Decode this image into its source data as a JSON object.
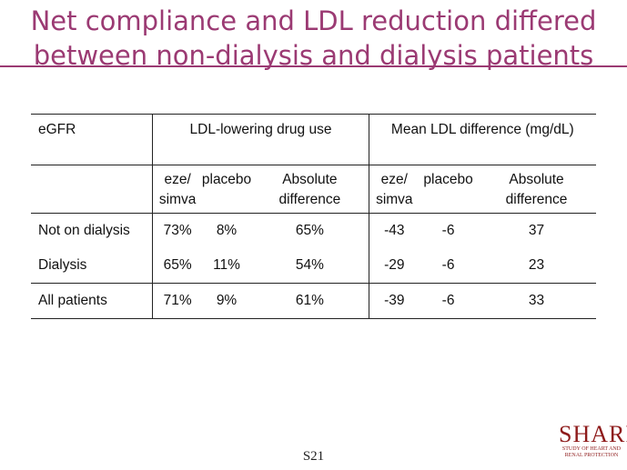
{
  "title": {
    "line1": "Net compliance and LDL reduction differed",
    "line2": "between non-dialysis and dialysis patients"
  },
  "table": {
    "header": {
      "egfr": "eGFR",
      "group1": "LDL-lowering drug use",
      "group2": "Mean LDL difference (mg/dL)"
    },
    "subheaders": [
      {
        "l1": "eze/",
        "l2": "simva"
      },
      {
        "l1": "placebo",
        "l2": ""
      },
      {
        "l1": "Absolute",
        "l2": "difference"
      },
      {
        "l1": "eze/",
        "l2": "simva"
      },
      {
        "l1": "placebo",
        "l2": ""
      },
      {
        "l1": "Absolute",
        "l2": "difference"
      }
    ],
    "rows": [
      {
        "label": "Not on dialysis",
        "values": [
          "73%",
          "8%",
          "65%",
          "-43",
          "-6",
          "37"
        ]
      },
      {
        "label": "Dialysis",
        "values": [
          "65%",
          "11%",
          "54%",
          "-29",
          "-6",
          "23"
        ]
      },
      {
        "label": "All patients",
        "values": [
          "71%",
          "9%",
          "61%",
          "-39",
          "-6",
          "33"
        ]
      }
    ]
  },
  "footer": {
    "slide_number": "S21",
    "logo_word": "SHARP",
    "logo_sub1": "STUDY OF HEART AND",
    "logo_sub2": "RENAL PROTECTION"
  },
  "colors": {
    "title": "#9b3a73",
    "logo": "#8e1b1b"
  }
}
